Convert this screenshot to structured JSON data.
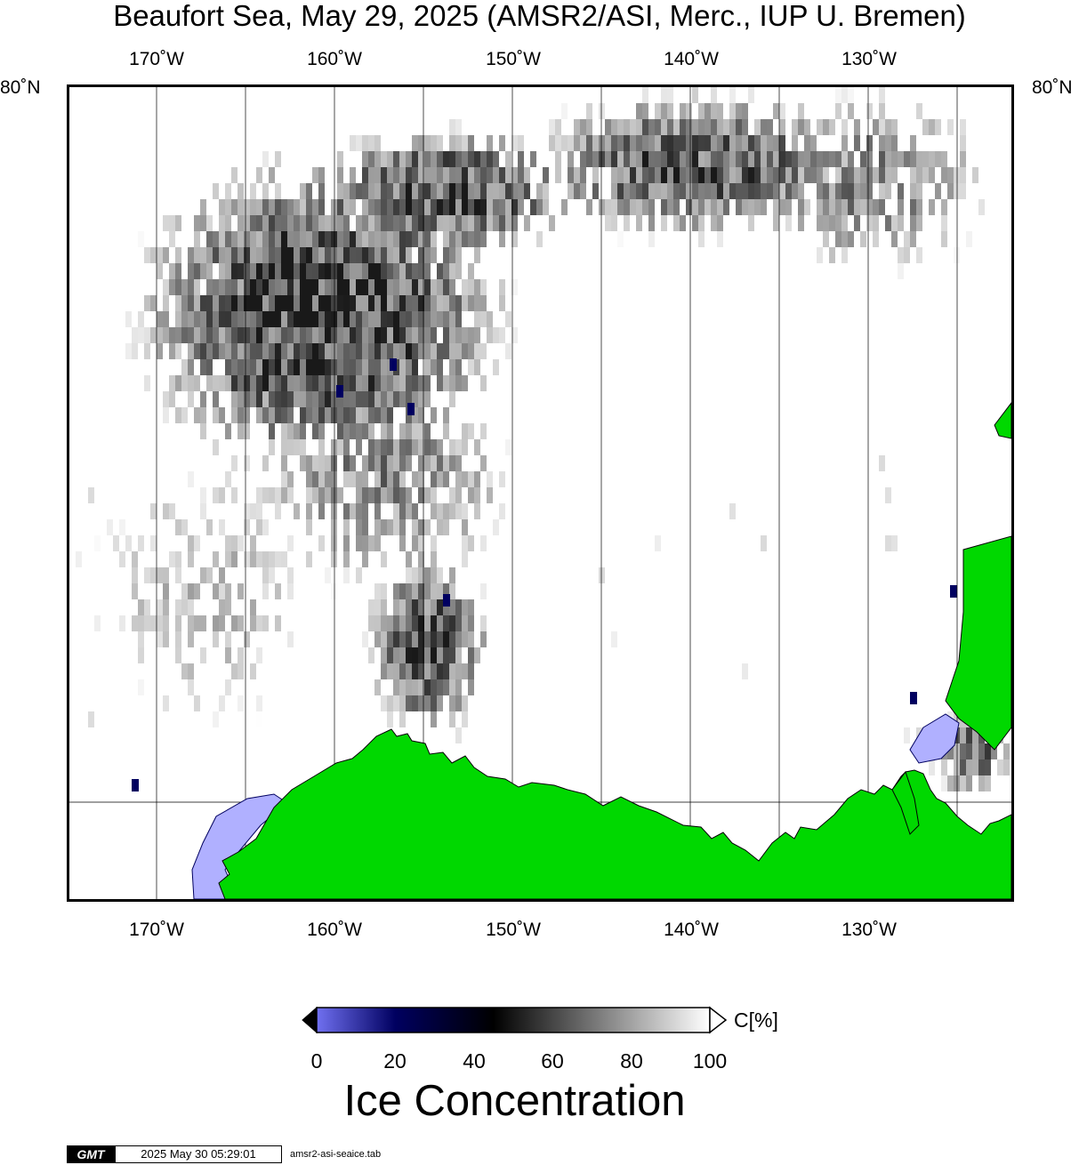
{
  "title": "Beaufort Sea, May 29, 2025 (AMSR2/ASI, Merc., IUP U. Bremen)",
  "map": {
    "lon_labels": [
      "170˚W",
      "160˚W",
      "150˚W",
      "140˚W",
      "130˚W"
    ],
    "lat_labels": [
      "80˚N",
      "80˚N"
    ],
    "colors": {
      "land": "#00d800",
      "frame": "#000000",
      "grid": "#000000",
      "low_ice": "#b0b0ff"
    }
  },
  "colorbar": {
    "ticks": [
      "0",
      "20",
      "40",
      "60",
      "80",
      "100"
    ],
    "unit": "C[%]",
    "title": "Ice Concentration",
    "colors": [
      "#7070f0",
      "#000060",
      "#000000",
      "#ffffff"
    ]
  },
  "footer": {
    "logo": "GMT",
    "timestamp": "2025 May 30 05:29:01",
    "command": "amsr2-asi-seaice.tab"
  }
}
